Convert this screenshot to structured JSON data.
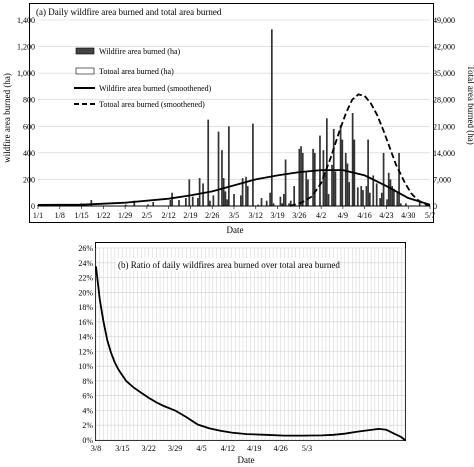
{
  "chart_data": [
    {
      "type": "bar",
      "title": "(a) Daily wildfire area burned and total area burned",
      "xlabel": "Date",
      "ylabel": "wildfire area burned (ha)",
      "ylabel_right": "Total area burned (ha)",
      "ylim": [
        0,
        1400
      ],
      "ylim_right": [
        0,
        49000
      ],
      "y_ticks": [
        "0",
        "200",
        "400",
        "600",
        "800",
        "1,000",
        "1,200",
        "1,400"
      ],
      "y_ticks_right": [
        "0",
        "7,000",
        "14,000",
        "21,000",
        "28,000",
        "35,000",
        "42,000",
        "49,000"
      ],
      "x_ticks": [
        "1/1",
        "1/8",
        "1/15",
        "1/22",
        "1/29",
        "2/5",
        "2/12",
        "2/19",
        "2/26",
        "3/5",
        "3/12",
        "3/19",
        "3/26",
        "4/2",
        "4/9",
        "4/16",
        "4/23",
        "4/30",
        "5/7"
      ],
      "grid": "horizontal",
      "legend_position": "upper-left",
      "legend": [
        "Wildfire area burned (ha)",
        "Totoal area burned (ha)",
        "Wildfire area burned (smoothened)",
        "Totoal area burned (smoothened)"
      ],
      "series": [
        {
          "name": "Wildfire area burned (ha)",
          "kind": "bar",
          "axis": "left",
          "color": "#444444",
          "values": [
            8,
            0,
            0,
            0,
            0,
            0,
            0,
            0,
            0,
            0,
            0,
            0,
            0,
            0,
            0,
            0,
            0,
            0,
            0,
            0,
            0,
            0,
            0,
            0,
            0,
            20,
            0,
            0,
            0,
            0,
            0,
            45,
            0,
            0,
            0,
            0,
            0,
            0,
            0,
            0,
            0,
            0,
            0,
            0,
            0,
            0,
            0,
            0,
            0,
            0,
            0,
            10,
            0,
            0,
            0,
            0,
            40,
            0,
            0,
            0,
            0,
            0,
            0,
            0,
            12,
            0,
            0,
            30,
            0,
            0,
            0,
            0,
            0,
            0,
            0,
            0,
            0,
            45,
            100,
            0,
            0,
            0,
            45,
            0,
            0,
            0,
            60,
            0,
            200,
            0,
            70,
            0,
            0,
            60,
            210,
            0,
            170,
            0,
            0,
            650,
            40,
            0,
            80,
            0,
            0,
            560,
            0,
            420,
            210,
            110,
            50,
            600,
            0,
            0,
            90,
            0,
            0,
            0,
            80,
            210,
            0,
            220,
            150,
            0,
            0,
            620,
            0,
            0,
            10,
            0,
            60,
            0,
            0,
            40,
            0,
            100,
            1330,
            20,
            0,
            0,
            0,
            70,
            20,
            90,
            350,
            0,
            20,
            40,
            0,
            150,
            0,
            0,
            430,
            450,
            400,
            0,
            260,
            200,
            0,
            0,
            430,
            400,
            0,
            0,
            530,
            0,
            420,
            260,
            660,
            90,
            0,
            310,
            580,
            260,
            0,
            0,
            610,
            500,
            0,
            400,
            320,
            180,
            0,
            700,
            500,
            0,
            140,
            0,
            150,
            120,
            0,
            150,
            500,
            100,
            0,
            230,
            0,
            170,
            0,
            60,
            100,
            400,
            0,
            50,
            250,
            200,
            150,
            130,
            0,
            100,
            400,
            20,
            0,
            0,
            20,
            0,
            0,
            0,
            0,
            0,
            0,
            0,
            30,
            0,
            0,
            0,
            0,
            0,
            0
          ]
        },
        {
          "name": "Totoal area burned (ha)",
          "kind": "bar",
          "axis": "right",
          "color": "#ffffff",
          "values": [
            0,
            0,
            0,
            0,
            0,
            0,
            0,
            0,
            0,
            0,
            0,
            0,
            0,
            0,
            0,
            0,
            0,
            0,
            0,
            0,
            0,
            0,
            0,
            0,
            0,
            0,
            0,
            0,
            0,
            0,
            0,
            0,
            0,
            0,
            0,
            0,
            0,
            0,
            0,
            0,
            0,
            0,
            0,
            0,
            0,
            0,
            0,
            0,
            0,
            0,
            0,
            0,
            0,
            0,
            0,
            0,
            0,
            0,
            0,
            0,
            0,
            0,
            0,
            0,
            0,
            0,
            0,
            0,
            0,
            0,
            0,
            0,
            0,
            0,
            0,
            0,
            0,
            0,
            0,
            0,
            0,
            0,
            0,
            0,
            0,
            0,
            0,
            0,
            0,
            0,
            0,
            0,
            0,
            0,
            0,
            0,
            0,
            0,
            0,
            0,
            0,
            0,
            0,
            0,
            0,
            0,
            0,
            0,
            0,
            0,
            0,
            0,
            0,
            0,
            0,
            0,
            0,
            0,
            0,
            0,
            0,
            0,
            0,
            0,
            0,
            0,
            0,
            0,
            0,
            0,
            0,
            0,
            0,
            0,
            0,
            0,
            0,
            0,
            0,
            0,
            0,
            0,
            0,
            0,
            0,
            0,
            0,
            0,
            0,
            0,
            0,
            0,
            0,
            0,
            0,
            0,
            0,
            0,
            0,
            0,
            0,
            0,
            0,
            0,
            0,
            0,
            0,
            0,
            0,
            0,
            0,
            0,
            0,
            0,
            0,
            0,
            0,
            0,
            0,
            0,
            0,
            0,
            0,
            0,
            0,
            0,
            0,
            0,
            0,
            0,
            0,
            0,
            0,
            0,
            0,
            0,
            0,
            0,
            0,
            0,
            0,
            0,
            0,
            0,
            0,
            0,
            0,
            0,
            0,
            0,
            0,
            0,
            0,
            0,
            0,
            0,
            0,
            0,
            0,
            0,
            0,
            0,
            0,
            0,
            0,
            0,
            0,
            0,
            0,
            0
          ]
        },
        {
          "name": "Wildfire area burned (smoothened)",
          "kind": "line",
          "axis": "left",
          "style": "solid",
          "x_days": [
            0,
            14,
            28,
            42,
            49,
            56,
            63,
            70,
            77,
            84,
            91,
            98,
            105,
            112,
            119,
            126
          ],
          "values": [
            8,
            10,
            25,
            55,
            80,
            110,
            155,
            200,
            230,
            255,
            270,
            270,
            230,
            150,
            60,
            10
          ]
        },
        {
          "name": "Totoal area burned (smoothened)",
          "kind": "line",
          "axis": "right",
          "style": "dashed",
          "x_days": [
            81,
            85,
            88,
            91,
            94,
            97,
            99,
            101,
            103,
            105,
            107,
            109,
            111,
            113,
            115,
            118,
            120,
            122,
            124,
            126
          ],
          "values": [
            0,
            1000,
            2500,
            6000,
            12500,
            20000,
            24500,
            28000,
            29400,
            29000,
            27000,
            24000,
            20000,
            15500,
            11000,
            6000,
            3300,
            1600,
            600,
            0
          ]
        }
      ]
    },
    {
      "type": "line",
      "title": "(b) Ratio of daily wildfires area burned over total area burned",
      "xlabel": "Date",
      "ylabel": "",
      "ylim": [
        0,
        26
      ],
      "y_ticks": [
        "0%",
        "2%",
        "4%",
        "6%",
        "8%",
        "10%",
        "12%",
        "14%",
        "16%",
        "18%",
        "20%",
        "22%",
        "24%",
        "26%"
      ],
      "x_ticks": [
        "3/8",
        "3/15",
        "3/22",
        "3/29",
        "4/5",
        "4/12",
        "4/19",
        "4/26",
        "5/3"
      ],
      "grid": "both",
      "series": [
        {
          "name": "",
          "x_days": [
            0,
            1,
            2,
            3,
            4,
            5,
            6,
            8,
            10,
            12,
            14,
            16,
            18,
            21,
            24,
            27,
            30,
            33,
            36,
            40,
            45,
            50,
            55,
            60,
            63,
            66,
            69,
            72,
            75,
            77,
            79,
            81,
            82
          ],
          "values": [
            23.5,
            19,
            16,
            13.5,
            11.8,
            10.5,
            9.5,
            8,
            7.1,
            6.4,
            5.7,
            5.1,
            4.6,
            4,
            3.1,
            2.1,
            1.6,
            1.25,
            1,
            0.8,
            0.7,
            0.6,
            0.6,
            0.62,
            0.7,
            0.85,
            1.1,
            1.3,
            1.5,
            1.4,
            0.9,
            0.4,
            0
          ]
        }
      ]
    }
  ]
}
